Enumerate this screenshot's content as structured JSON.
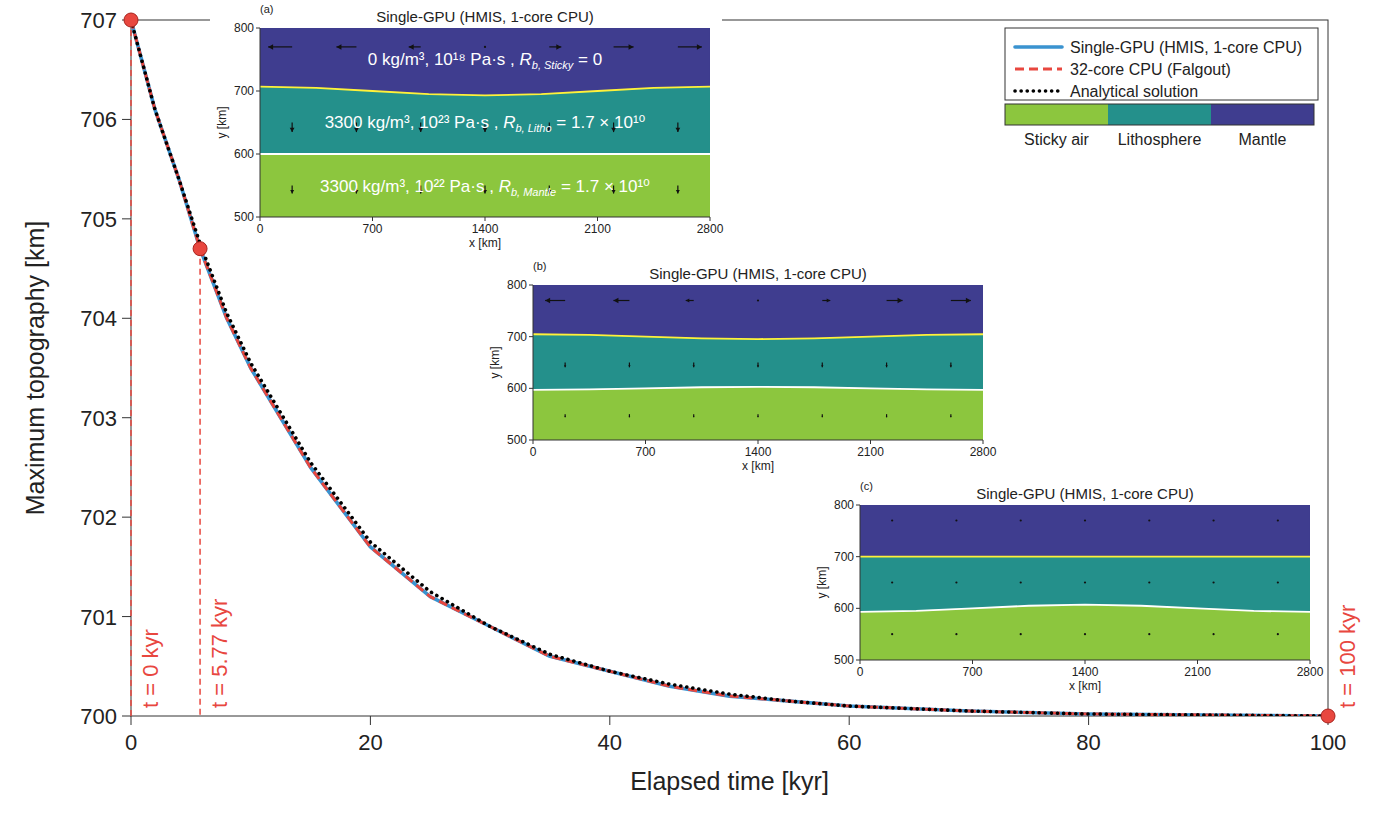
{
  "chart_data": {
    "type": "line",
    "xlabel": "Elapsed time [kyr]",
    "ylabel": "Maximum topography [km]",
    "xlim": [
      0,
      100
    ],
    "ylim": [
      700,
      707
    ],
    "xticks": [
      0,
      20,
      40,
      60,
      80,
      100
    ],
    "yticks": [
      700,
      701,
      702,
      703,
      704,
      705,
      706,
      707
    ],
    "grid": false,
    "legend": "top-right",
    "x": [
      0,
      2,
      4,
      5.77,
      8,
      10,
      12,
      15,
      20,
      25,
      30,
      35,
      40,
      45,
      50,
      55,
      60,
      70,
      80,
      90,
      100
    ],
    "series": [
      {
        "name": "Single-GPU (HMIS, 1-core CPU)",
        "color": "#3a93d0",
        "line_style": "solid",
        "values": [
          707,
          706.1,
          705.4,
          704.7,
          704.0,
          703.5,
          703.1,
          702.5,
          701.7,
          701.2,
          700.9,
          700.6,
          700.45,
          700.3,
          700.2,
          700.15,
          700.1,
          700.05,
          700.02,
          700.01,
          700.0
        ]
      },
      {
        "name": "32-core CPU (Falgout)",
        "color": "#e8473f",
        "line_style": "dashed",
        "values": [
          707,
          706.1,
          705.4,
          704.7,
          704.0,
          703.5,
          703.1,
          702.5,
          701.7,
          701.2,
          700.9,
          700.6,
          700.45,
          700.3,
          700.2,
          700.15,
          700.1,
          700.05,
          700.02,
          700.01,
          700.0
        ]
      },
      {
        "name": "Analytical solution",
        "color": "#000000",
        "line_style": "dotted",
        "values": [
          707,
          706.1,
          705.4,
          704.75,
          704.05,
          703.55,
          703.15,
          702.55,
          701.75,
          701.25,
          700.9,
          700.62,
          700.45,
          700.32,
          700.22,
          700.15,
          700.1,
          700.05,
          700.02,
          700.01,
          700.0
        ]
      }
    ],
    "annotations": [
      {
        "text": "t = 0 kyr",
        "x": 0,
        "y": 707
      },
      {
        "text": "t = 5.77 kyr",
        "x": 5.77,
        "y": 704.7
      },
      {
        "text": "t = 100 kyr",
        "x": 100,
        "y": 700
      }
    ],
    "colorbar": {
      "labels": [
        "Sticky air",
        "Lithosphere",
        "Mantle"
      ],
      "colors": [
        "#8cc63e",
        "#24908b",
        "#3f3d8f"
      ]
    },
    "insets": {
      "layer_colors": [
        "#3f3d8f",
        "#24908b",
        "#8cc63e"
      ],
      "surface_color": "#fff13a",
      "moho_color": "#ffffff",
      "panels": [
        {
          "label": "(a)",
          "title": "Single-GPU (HMIS, 1-core CPU)",
          "xlabel": "x [km]",
          "ylabel": "y [km]",
          "xlim": [
            0,
            2800
          ],
          "ylim": [
            500,
            800
          ],
          "xticks": [
            0,
            700,
            1400,
            2100,
            2800
          ],
          "yticks": [
            500,
            600,
            700,
            800
          ],
          "interface_x": [
            0,
            350,
            700,
            1050,
            1400,
            1750,
            2100,
            2450,
            2800
          ],
          "surface": [
            707,
            704.9,
            700,
            695.1,
            693,
            695.1,
            700,
            704.9,
            707
          ],
          "moho": [
            600,
            600,
            600,
            600,
            600,
            600,
            600,
            600,
            600
          ],
          "arrows": {
            "x": [
              200,
              600,
              1000,
              1400,
              1800,
              2200,
              2600
            ],
            "y": [
              770,
              650,
              550
            ],
            "u": [
              [
                -3,
                -2.5,
                -1.5,
                0,
                1.5,
                2.5,
                3
              ],
              [
                0,
                0,
                0,
                0,
                0,
                0,
                0
              ],
              [
                0,
                0,
                0,
                0,
                0,
                0,
                0
              ]
            ],
            "v": [
              [
                0,
                0,
                0,
                0,
                0,
                0,
                0
              ],
              [
                -1.2,
                -1.2,
                -1.2,
                -1.2,
                -1.2,
                -1.2,
                -1.2
              ],
              [
                -1,
                -1,
                -1,
                -1,
                -1,
                -1,
                -1
              ]
            ]
          },
          "layer_labels": [
            {
              "text": "0 kg/m³, 10¹⁸ Pa·s , ",
              "symbol": "R",
              "subscript": "b, Sticky",
              "suffix": " = 0"
            },
            {
              "text": "3300 kg/m³, 10²³ Pa·s , ",
              "symbol": "R",
              "subscript": "b, Litho",
              "suffix": " = 1.7 × 10¹⁰"
            },
            {
              "text": "3300 kg/m³, 10²² Pa·s , ",
              "symbol": "R",
              "subscript": "b, Mantle",
              "suffix": " = 1.7 × 10¹⁰"
            }
          ]
        },
        {
          "label": "(b)",
          "title": "Single-GPU (HMIS, 1-core CPU)",
          "xlabel": "x [km]",
          "ylabel": "y [km]",
          "xlim": [
            0,
            2800
          ],
          "ylim": [
            500,
            800
          ],
          "xticks": [
            0,
            700,
            1400,
            2100,
            2800
          ],
          "yticks": [
            500,
            600,
            700,
            800
          ],
          "interface_x": [
            0,
            350,
            700,
            1050,
            1400,
            1750,
            2100,
            2450,
            2800
          ],
          "surface": [
            704.7,
            703.3,
            700,
            696.7,
            695.3,
            696.7,
            700,
            703.3,
            704.7
          ],
          "moho": [
            597,
            597.9,
            600,
            602.1,
            603,
            602.1,
            600,
            597.9,
            597
          ],
          "arrows": {
            "x": [
              200,
              600,
              1000,
              1400,
              1800,
              2200,
              2600
            ],
            "y": [
              770,
              650,
              550
            ],
            "u": [
              [
                -2.5,
                -2,
                -1,
                0,
                1,
                2,
                2.5
              ],
              [
                0,
                0,
                0,
                0,
                0,
                0,
                0
              ],
              [
                0,
                0,
                0,
                0,
                0,
                0,
                0
              ]
            ],
            "v": [
              [
                0,
                0,
                0,
                0,
                0,
                0,
                0
              ],
              [
                -0.6,
                -0.6,
                -0.6,
                -0.6,
                -0.6,
                -0.6,
                -0.6
              ],
              [
                -0.4,
                -0.4,
                -0.4,
                -0.4,
                -0.4,
                -0.4,
                -0.4
              ]
            ]
          }
        },
        {
          "label": "(c)",
          "title": "Single-GPU (HMIS, 1-core CPU)",
          "xlabel": "x [km]",
          "ylabel": "y [km]",
          "xlim": [
            0,
            2800
          ],
          "ylim": [
            500,
            800
          ],
          "xticks": [
            0,
            700,
            1400,
            2100,
            2800
          ],
          "yticks": [
            500,
            600,
            700,
            800
          ],
          "interface_x": [
            0,
            350,
            700,
            1050,
            1400,
            1750,
            2100,
            2450,
            2800
          ],
          "surface": [
            700,
            700,
            700,
            700,
            700,
            700,
            700,
            700,
            700
          ],
          "moho": [
            593,
            595,
            600,
            605,
            607,
            605,
            600,
            595,
            593
          ],
          "arrows": {
            "x": [
              200,
              600,
              1000,
              1400,
              1800,
              2200,
              2600
            ],
            "y": [
              770,
              650,
              550
            ],
            "u": [
              [
                0,
                0,
                0,
                0,
                0,
                0,
                0
              ],
              [
                0,
                0,
                0,
                0,
                0,
                0,
                0
              ],
              [
                0,
                0,
                0,
                0,
                0,
                0,
                0
              ]
            ],
            "v": [
              [
                -0.1,
                -0.1,
                -0.1,
                -0.1,
                -0.1,
                -0.1,
                -0.1
              ],
              [
                -0.2,
                -0.2,
                -0.2,
                -0.2,
                -0.2,
                -0.2,
                -0.2
              ],
              [
                -0.2,
                -0.2,
                -0.2,
                -0.2,
                -0.2,
                -0.2,
                -0.2
              ]
            ]
          }
        }
      ]
    }
  }
}
